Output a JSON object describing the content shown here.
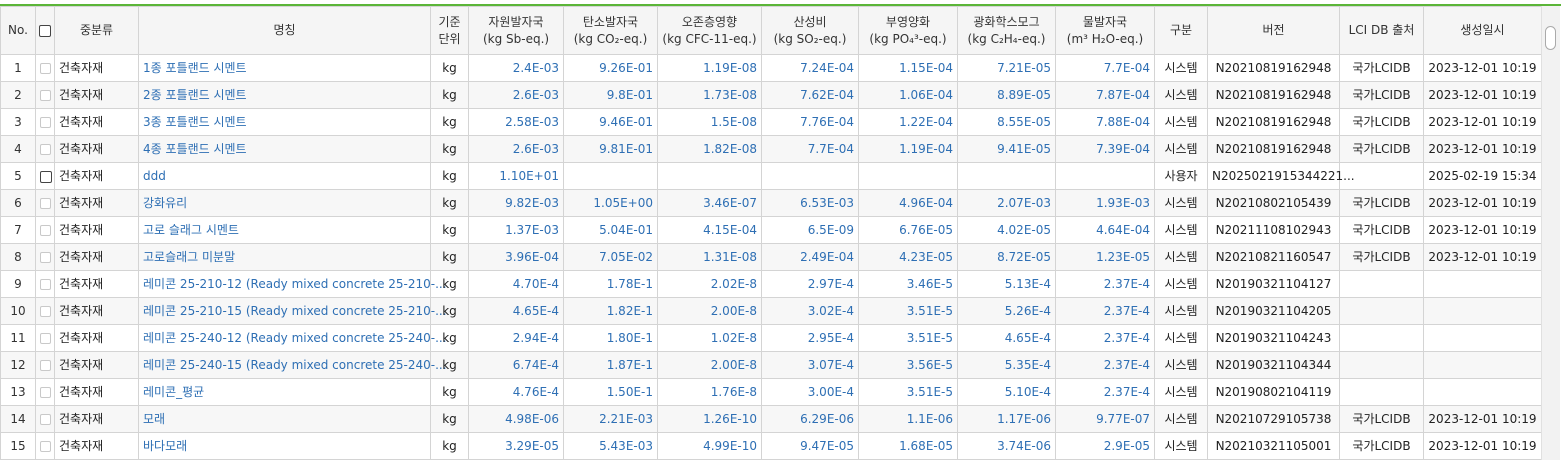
{
  "header": {
    "no": "No.",
    "category": "중분류",
    "name": "명칭",
    "unit": [
      "기준",
      "단위"
    ],
    "indicators": [
      [
        "자원발자국",
        "(kg Sb-eq.)"
      ],
      [
        "탄소발자국",
        "(kg CO₂-eq.)"
      ],
      [
        "오존층영향",
        "(kg CFC-11-eq.)"
      ],
      [
        "산성비",
        "(kg SO₂-eq.)"
      ],
      [
        "부영양화",
        "(kg PO₄³-eq.)"
      ],
      [
        "광화학스모그",
        "(kg C₂H₄-eq.)"
      ],
      [
        "물발자국",
        "(m³ H₂O-eq.)"
      ]
    ],
    "type": "구분",
    "version": "버전",
    "source": "LCI DB 출처",
    "created": "생성일시"
  },
  "rows": [
    {
      "no": "1",
      "category": "건축자재",
      "name": "1종 포틀랜드 시멘트",
      "unit": "kg",
      "values": [
        "2.4E-03",
        "9.26E-01",
        "1.19E-08",
        "7.24E-04",
        "1.15E-04",
        "7.21E-05",
        "7.7E-04"
      ],
      "type": "시스템",
      "version": "N20210819162948",
      "source": "국가LCIDB",
      "created": "2023-12-01 10:19",
      "checkbox_strong": false
    },
    {
      "no": "2",
      "category": "건축자재",
      "name": "2종 포틀랜드 시멘트",
      "unit": "kg",
      "values": [
        "2.6E-03",
        "9.8E-01",
        "1.73E-08",
        "7.62E-04",
        "1.06E-04",
        "8.89E-05",
        "7.87E-04"
      ],
      "type": "시스템",
      "version": "N20210819162948",
      "source": "국가LCIDB",
      "created": "2023-12-01 10:19",
      "checkbox_strong": false
    },
    {
      "no": "3",
      "category": "건축자재",
      "name": "3종 포틀랜드 시멘트",
      "unit": "kg",
      "values": [
        "2.58E-03",
        "9.46E-01",
        "1.5E-08",
        "7.76E-04",
        "1.22E-04",
        "8.55E-05",
        "7.88E-04"
      ],
      "type": "시스템",
      "version": "N20210819162948",
      "source": "국가LCIDB",
      "created": "2023-12-01 10:19",
      "checkbox_strong": false
    },
    {
      "no": "4",
      "category": "건축자재",
      "name": "4종 포틀랜드 시멘트",
      "unit": "kg",
      "values": [
        "2.6E-03",
        "9.81E-01",
        "1.82E-08",
        "7.7E-04",
        "1.19E-04",
        "9.41E-05",
        "7.39E-04"
      ],
      "type": "시스템",
      "version": "N20210819162948",
      "source": "국가LCIDB",
      "created": "2023-12-01 10:19",
      "checkbox_strong": false
    },
    {
      "no": "5",
      "category": "건축자재",
      "name": "ddd",
      "unit": "kg",
      "values": [
        "1.10E+01",
        "",
        "",
        "",
        "",
        "",
        ""
      ],
      "type": "사용자",
      "version": "N2025021915344221...",
      "source": "",
      "created": "2025-02-19 15:34",
      "checkbox_strong": true
    },
    {
      "no": "6",
      "category": "건축자재",
      "name": "강화유리",
      "unit": "kg",
      "values": [
        "9.82E-03",
        "1.05E+00",
        "3.46E-07",
        "6.53E-03",
        "4.96E-04",
        "2.07E-03",
        "1.93E-03"
      ],
      "type": "시스템",
      "version": "N20210802105439",
      "source": "국가LCIDB",
      "created": "2023-12-01 10:19",
      "checkbox_strong": false
    },
    {
      "no": "7",
      "category": "건축자재",
      "name": "고로 슬래그 시멘트",
      "unit": "kg",
      "values": [
        "1.37E-03",
        "5.04E-01",
        "4.15E-04",
        "6.5E-09",
        "6.76E-05",
        "4.02E-05",
        "4.64E-04"
      ],
      "type": "시스템",
      "version": "N20211108102943",
      "source": "국가LCIDB",
      "created": "2023-12-01 10:19",
      "checkbox_strong": false
    },
    {
      "no": "8",
      "category": "건축자재",
      "name": "고로슬래그 미분말",
      "unit": "kg",
      "values": [
        "3.96E-04",
        "7.05E-02",
        "1.31E-08",
        "2.49E-04",
        "4.23E-05",
        "8.72E-05",
        "1.23E-05"
      ],
      "type": "시스템",
      "version": "N20210821160547",
      "source": "국가LCIDB",
      "created": "2023-12-01 10:19",
      "checkbox_strong": false
    },
    {
      "no": "9",
      "category": "건축자재",
      "name": "레미콘 25-210-12 (Ready mixed concrete 25-210-...",
      "unit": "kg",
      "values": [
        "4.70E-4",
        "1.78E-1",
        "2.02E-8",
        "2.97E-4",
        "3.46E-5",
        "5.13E-4",
        "2.37E-4"
      ],
      "type": "시스템",
      "version": "N20190321104127",
      "source": "",
      "created": "",
      "checkbox_strong": false
    },
    {
      "no": "10",
      "category": "건축자재",
      "name": "레미콘 25-210-15 (Ready mixed concrete 25-210-...",
      "unit": "kg",
      "values": [
        "4.65E-4",
        "1.82E-1",
        "2.00E-8",
        "3.02E-4",
        "3.51E-5",
        "5.26E-4",
        "2.37E-4"
      ],
      "type": "시스템",
      "version": "N20190321104205",
      "source": "",
      "created": "",
      "checkbox_strong": false
    },
    {
      "no": "11",
      "category": "건축자재",
      "name": "레미콘 25-240-12 (Ready mixed concrete 25-240-...",
      "unit": "kg",
      "values": [
        "2.94E-4",
        "1.80E-1",
        "1.02E-8",
        "2.95E-4",
        "3.51E-5",
        "4.65E-4",
        "2.37E-4"
      ],
      "type": "시스템",
      "version": "N20190321104243",
      "source": "",
      "created": "",
      "checkbox_strong": false
    },
    {
      "no": "12",
      "category": "건축자재",
      "name": "레미콘 25-240-15 (Ready mixed concrete 25-240-...",
      "unit": "kg",
      "values": [
        "6.74E-4",
        "1.87E-1",
        "2.00E-8",
        "3.07E-4",
        "3.56E-5",
        "5.35E-4",
        "2.37E-4"
      ],
      "type": "시스템",
      "version": "N20190321104344",
      "source": "",
      "created": "",
      "checkbox_strong": false
    },
    {
      "no": "13",
      "category": "건축자재",
      "name": "레미콘_평균",
      "unit": "kg",
      "values": [
        "4.76E-4",
        "1.50E-1",
        "1.76E-8",
        "3.00E-4",
        "3.51E-5",
        "5.10E-4",
        "2.37E-4"
      ],
      "type": "시스템",
      "version": "N20190802104119",
      "source": "",
      "created": "",
      "checkbox_strong": false
    },
    {
      "no": "14",
      "category": "건축자재",
      "name": "모래",
      "unit": "kg",
      "values": [
        "4.98E-06",
        "2.21E-03",
        "1.26E-10",
        "6.29E-06",
        "1.1E-06",
        "1.17E-06",
        "9.77E-07"
      ],
      "type": "시스템",
      "version": "N20210729105738",
      "source": "국가LCIDB",
      "created": "2023-12-01 10:19",
      "checkbox_strong": false
    },
    {
      "no": "15",
      "category": "건축자재",
      "name": "바다모래",
      "unit": "kg",
      "values": [
        "3.29E-05",
        "5.43E-03",
        "4.99E-10",
        "9.47E-05",
        "1.68E-05",
        "3.74E-06",
        "2.9E-05"
      ],
      "type": "시스템",
      "version": "N20210321105001",
      "source": "국가LCIDB",
      "created": "2023-12-01 10:19",
      "checkbox_strong": false
    }
  ],
  "colors": {
    "accent": "#5bb538",
    "link": "#2e6fb4",
    "header_bg": "#f5f5f5",
    "border": "#d4d4d4"
  }
}
